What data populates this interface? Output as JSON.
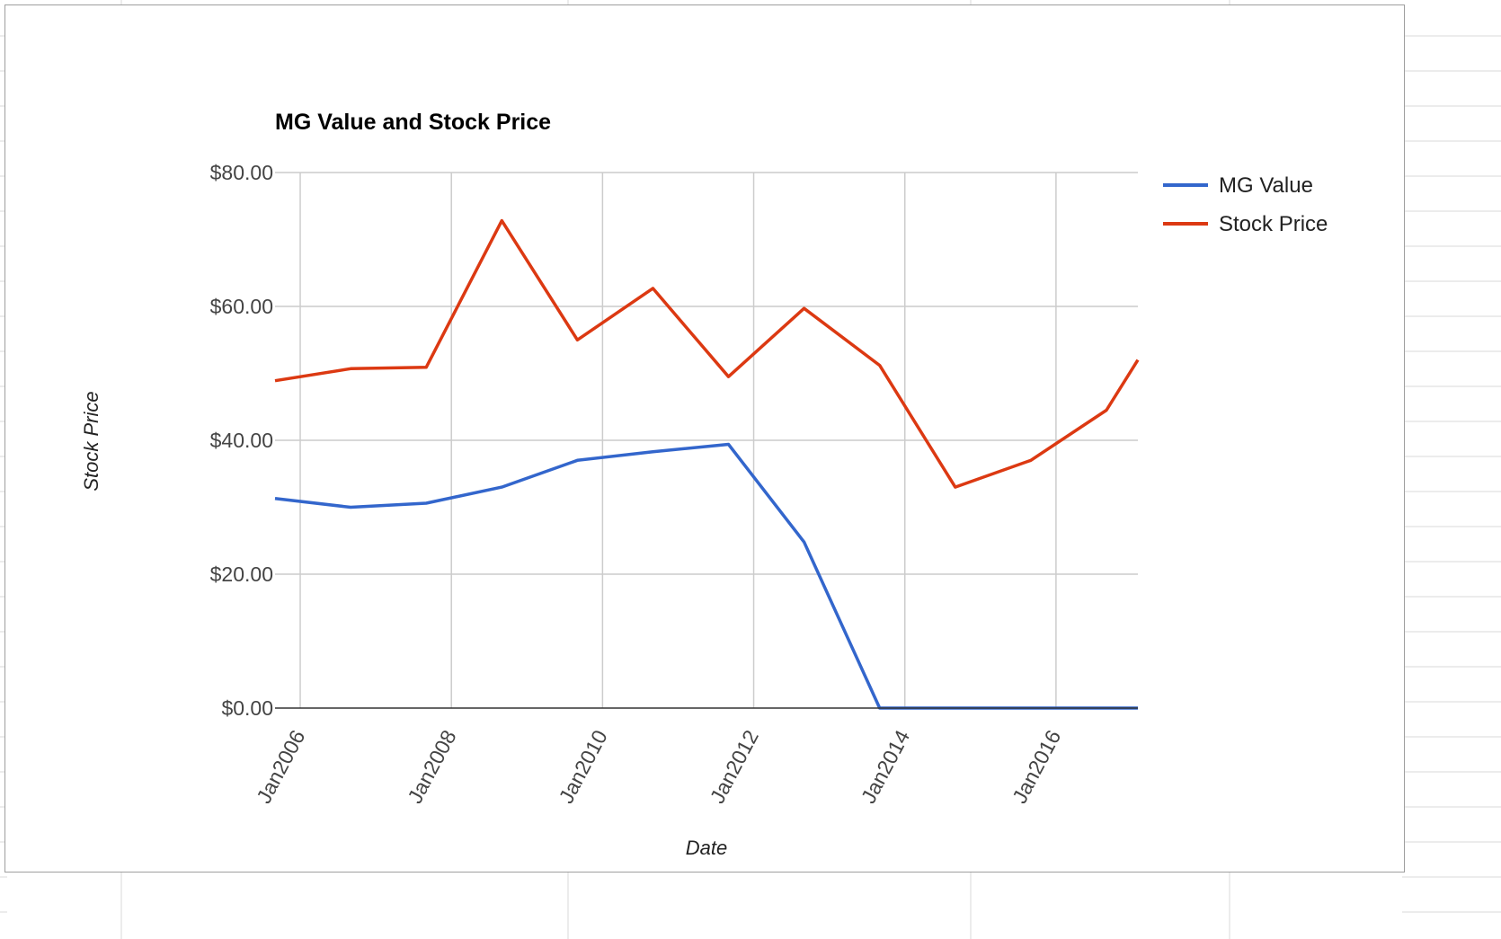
{
  "chart_data": {
    "type": "line",
    "title": "MG Value and Stock Price",
    "xlabel": "Date",
    "ylabel": "Stock Price",
    "ylim": [
      0,
      80
    ],
    "y_ticks": [
      "$0.00",
      "$20.00",
      "$40.00",
      "$60.00",
      "$80.00"
    ],
    "x_tick_labels": [
      {
        "date": "2006-01",
        "label": "Jan2006"
      },
      {
        "date": "2008-01",
        "label": "Jan2008"
      },
      {
        "date": "2010-01",
        "label": "Jan2010"
      },
      {
        "date": "2012-01",
        "label": "Jan2012"
      },
      {
        "date": "2014-01",
        "label": "Jan2014"
      },
      {
        "date": "2016-01",
        "label": "Jan2016"
      }
    ],
    "xlim": [
      "2005-09",
      "2017-02"
    ],
    "x": [
      "2005-09",
      "2006-09",
      "2007-09",
      "2008-09",
      "2009-09",
      "2010-09",
      "2011-09",
      "2012-09",
      "2013-09",
      "2014-09",
      "2015-09",
      "2016-09",
      "2017-02"
    ],
    "series": [
      {
        "name": "MG Value",
        "color": "#3366cc",
        "values": [
          31.3,
          30.0,
          30.6,
          33.0,
          37.0,
          38.3,
          39.4,
          24.8,
          0.0,
          0.0,
          0.0,
          0.0,
          0.0
        ]
      },
      {
        "name": "Stock Price",
        "color": "#dc3912",
        "values": [
          48.9,
          50.7,
          50.9,
          72.8,
          55.0,
          62.7,
          49.5,
          59.7,
          51.2,
          33.0,
          37.0,
          44.5,
          52.0
        ]
      }
    ],
    "grid": true,
    "legend_position": "right"
  }
}
